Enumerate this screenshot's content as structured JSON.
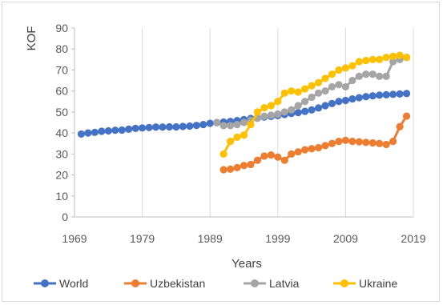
{
  "chart_data": {
    "type": "line",
    "xlabel": "Years",
    "ylabel": "KOF",
    "xlim": [
      1969,
      2019
    ],
    "ylim": [
      0,
      90
    ],
    "xticks": [
      1969,
      1979,
      1989,
      1999,
      2009,
      2019
    ],
    "yticks": [
      0,
      10,
      20,
      30,
      40,
      50,
      60,
      70,
      80,
      90
    ],
    "grid": "vertical",
    "legend_position": "bottom",
    "series": [
      {
        "name": "World",
        "color": "#4472c4",
        "x": [
          1970,
          1971,
          1972,
          1973,
          1974,
          1975,
          1976,
          1977,
          1978,
          1979,
          1980,
          1981,
          1982,
          1983,
          1984,
          1985,
          1986,
          1987,
          1988,
          1989,
          1990,
          1991,
          1992,
          1993,
          1994,
          1995,
          1996,
          1997,
          1998,
          1999,
          2000,
          2001,
          2002,
          2003,
          2004,
          2005,
          2006,
          2007,
          2008,
          2009,
          2010,
          2011,
          2012,
          2013,
          2014,
          2015,
          2016,
          2017,
          2018
        ],
        "y": [
          39.5,
          40,
          40.3,
          40.8,
          41,
          41.3,
          41.4,
          41.8,
          42.2,
          42.4,
          42.6,
          42.8,
          42.8,
          42.9,
          42.9,
          43.1,
          43.3,
          43.6,
          44,
          44.6,
          44.9,
          45.2,
          45.5,
          45.9,
          46.4,
          46.9,
          47.2,
          47.6,
          47.9,
          48.3,
          48.8,
          49.3,
          49.7,
          50.3,
          51,
          51.9,
          53,
          54,
          55,
          55.5,
          56.2,
          56.8,
          57.3,
          57.7,
          58,
          58.2,
          58.4,
          58.6,
          58.8
        ]
      },
      {
        "name": "Uzbekistan",
        "color": "#ed7d31",
        "x": [
          1991,
          1992,
          1993,
          1994,
          1995,
          1996,
          1997,
          1998,
          1999,
          2000,
          2001,
          2002,
          2003,
          2004,
          2005,
          2006,
          2007,
          2008,
          2009,
          2010,
          2011,
          2012,
          2013,
          2014,
          2015,
          2016,
          2017,
          2018
        ],
        "y": [
          22.5,
          22.8,
          23.5,
          24.5,
          25,
          27,
          29,
          29.5,
          28.5,
          27,
          30,
          31,
          32,
          32.5,
          33,
          34,
          35,
          36,
          36.5,
          36,
          35.8,
          35.5,
          35.3,
          35,
          34.5,
          36,
          43,
          48
        ]
      },
      {
        "name": "Latvia",
        "color": "#a5a5a5",
        "x": [
          1990,
          1991,
          1992,
          1993,
          1994,
          1995,
          1996,
          1997,
          1998,
          1999,
          2000,
          2001,
          2002,
          2003,
          2004,
          2005,
          2006,
          2007,
          2008,
          2009,
          2010,
          2011,
          2012,
          2013,
          2014,
          2015,
          2016,
          2017,
          2018
        ],
        "y": [
          45,
          43.5,
          43.5,
          44,
          45,
          46,
          47,
          48,
          48.5,
          49,
          50,
          51,
          53,
          55,
          57,
          59,
          60,
          62,
          63,
          62,
          65,
          67,
          68,
          68,
          67,
          67,
          74,
          75,
          76
        ]
      },
      {
        "name": "Ukraine",
        "color": "#ffc000",
        "x": [
          1991,
          1992,
          1993,
          1994,
          1995,
          1996,
          1997,
          1998,
          1999,
          2000,
          2001,
          2002,
          2003,
          2004,
          2005,
          2006,
          2007,
          2008,
          2009,
          2010,
          2011,
          2012,
          2013,
          2014,
          2015,
          2016,
          2017,
          2018
        ],
        "y": [
          30,
          36,
          38,
          39,
          44,
          50,
          52,
          53,
          55,
          59,
          60,
          59.5,
          61,
          62.5,
          64,
          66,
          68,
          70,
          71,
          72,
          74,
          74.5,
          75,
          75,
          76,
          76.5,
          77,
          76
        ]
      }
    ]
  }
}
